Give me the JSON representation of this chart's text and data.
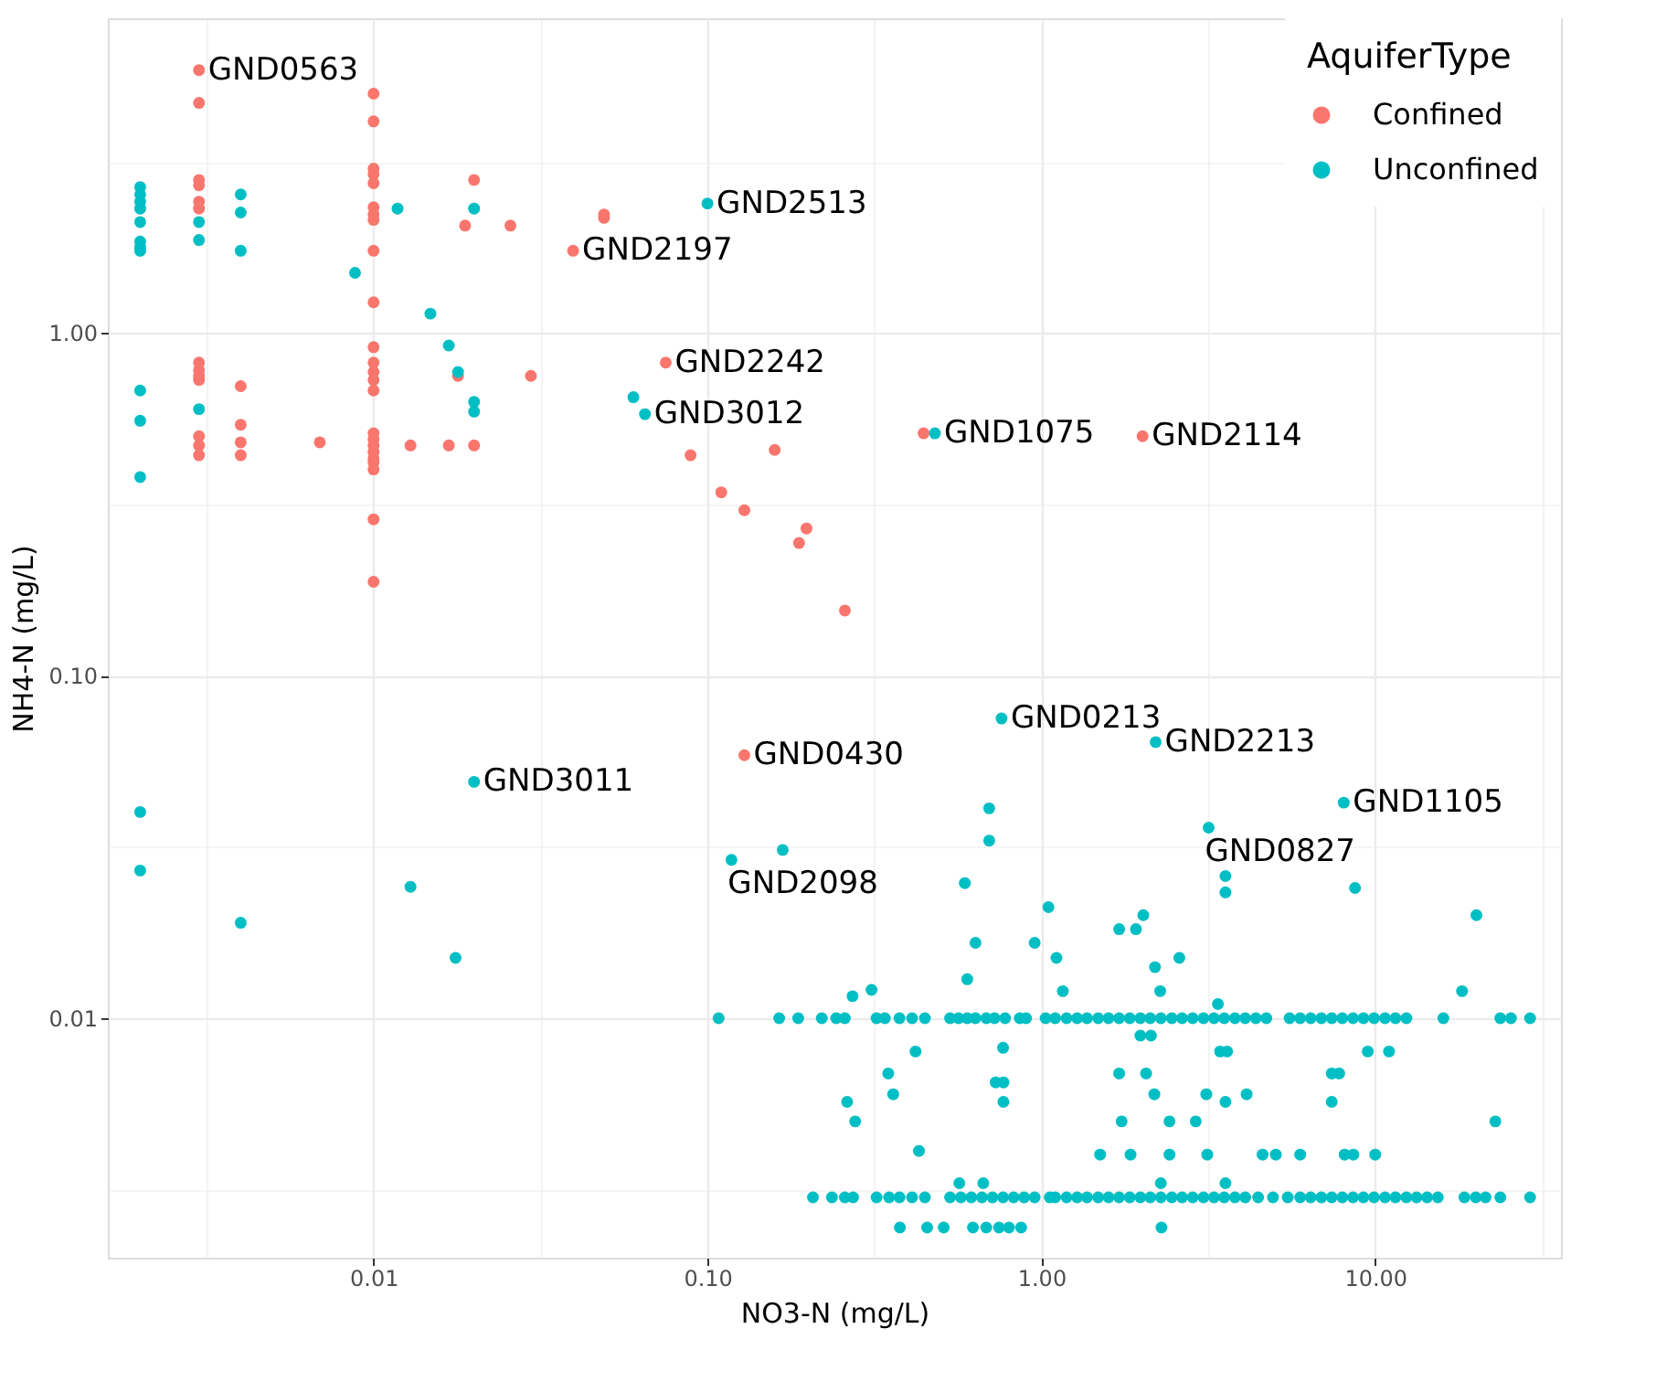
{
  "chart_data": {
    "type": "scatter",
    "xlabel": "NO3-N (mg/L)",
    "ylabel": "NH4-N (mg/L)",
    "legend_title": "AquiferType",
    "legend": "top right",
    "grid": true,
    "marker": "circle",
    "log": "xy",
    "xlim": [
      0.0016,
      36
    ],
    "ylim": [
      0.002,
      8.3
    ],
    "xticks": [
      {
        "value": 0.00316,
        "label": null
      },
      0.01,
      {
        "value": 0.0316,
        "label": null
      },
      {
        "value": 0.1,
        "label": "0.10"
      },
      {
        "value": 0.316,
        "label": null
      },
      {
        "value": 1,
        "label": "1.00"
      },
      {
        "value": 3.16,
        "label": null
      },
      {
        "value": 10,
        "label": "10.00"
      },
      {
        "value": 31.6,
        "label": null
      }
    ],
    "yticks": [
      {
        "value": 0.00316,
        "label": null
      },
      0.01,
      {
        "value": 0.0316,
        "label": null
      },
      {
        "value": 0.1,
        "label": "0.10"
      },
      {
        "value": 0.316,
        "label": null
      },
      {
        "value": 1,
        "label": "1.00"
      },
      {
        "value": 3.16,
        "label": null
      }
    ],
    "series": [
      {
        "name": "Confined",
        "color": "#f8766d",
        "x": [
          0.003,
          0.003,
          0.003,
          0.003,
          0.003,
          0.003,
          0.003,
          0.003,
          0.003,
          0.003,
          0.003,
          0.003,
          0.003,
          0.004,
          0.004,
          0.004,
          0.004,
          0.0069,
          0.01,
          0.01,
          0.01,
          0.01,
          0.01,
          0.01,
          0.01,
          0.01,
          0.01,
          0.01,
          0.01,
          0.01,
          0.01,
          0.01,
          0.01,
          0.01,
          0.01,
          0.01,
          0.01,
          0.01,
          0.01,
          0.01,
          0.01,
          0.01,
          0.0129,
          0.0168,
          0.0179,
          0.02,
          0.0188,
          0.02,
          0.0257,
          0.0296,
          0.0396,
          0.049,
          0.049,
          0.075,
          0.089,
          0.159,
          0.11,
          0.129,
          0.198,
          0.188,
          0.258,
          0.444,
          2.01,
          0.129
        ],
        "values": [
          5.86,
          4.7,
          2.8,
          2.7,
          2.42,
          2.31,
          0.82,
          0.78,
          0.75,
          0.73,
          0.5,
          0.47,
          0.44,
          0.7,
          0.54,
          0.48,
          0.44,
          0.48,
          5.0,
          4.15,
          3.02,
          2.91,
          2.74,
          2.33,
          2.22,
          2.14,
          1.74,
          1.23,
          0.91,
          0.82,
          0.77,
          0.73,
          0.68,
          0.51,
          0.49,
          0.47,
          0.45,
          0.43,
          0.42,
          0.4,
          0.286,
          0.188,
          0.47,
          0.47,
          0.75,
          2.8,
          2.06,
          0.47,
          2.06,
          0.75,
          1.74,
          2.22,
          2.17,
          0.82,
          0.44,
          0.456,
          0.343,
          0.304,
          0.269,
          0.244,
          0.155,
          0.51,
          0.5,
          0.0586
        ]
      },
      {
        "name": "Unconfined",
        "color": "#00bfc4",
        "x": [
          0.002,
          0.002,
          0.002,
          0.002,
          0.002,
          0.002,
          0.002,
          0.002,
          0.002,
          0.002,
          0.002,
          0.002,
          0.002,
          0.003,
          0.003,
          0.003,
          0.004,
          0.004,
          0.004,
          0.004,
          0.0088,
          0.0118,
          0.0148,
          0.0168,
          0.0179,
          0.02,
          0.02,
          0.02,
          0.06,
          0.065,
          0.1,
          0.48,
          0.02,
          0.0129,
          0.0176,
          0.118,
          0.168,
          0.76,
          2.2,
          8.05,
          3.17,
          0.59,
          0.635,
          0.6,
          0.698,
          0.698,
          1.05,
          0.955,
          1.11,
          1.16,
          1.71,
          1.92,
          2.02,
          2.19,
          2.27,
          2.59,
          3.38,
          3.56,
          3.56,
          8.7,
          20.1,
          18.2,
          0.262,
          0.277,
          0.348,
          0.36,
          0.42,
          0.43,
          0.272,
          0.31,
          0.768,
          0.73,
          0.77,
          0.77,
          0.568,
          0.67,
          1.71,
          1.74,
          2.06,
          1.98,
          2.13,
          2.18,
          2.42,
          3.12,
          2.9,
          3.43,
          3.6,
          3.56,
          4.12,
          1.5,
          1.85,
          2.28,
          2.42,
          3.14,
          3.56,
          4.6,
          5.04,
          5.96,
          7.41,
          7.41,
          7.8,
          9.5,
          11.0,
          8.1,
          8.6,
          10.0,
          22.9,
          0.108,
          0.164,
          0.187,
          0.22,
          0.243,
          0.258,
          0.321,
          0.34,
          0.376,
          0.41,
          0.448,
          0.533,
          0.565,
          0.6,
          0.635,
          0.684,
          0.724,
          0.779,
          0.862,
          0.9,
          1.03,
          1.1,
          1.19,
          1.28,
          1.37,
          1.48,
          1.59,
          1.71,
          1.84,
          1.98,
          2.12,
          2.28,
          2.46,
          2.64,
          2.84,
          3.06,
          3.29,
          3.53,
          3.8,
          4.08,
          4.39,
          4.72,
          5.54,
          5.96,
          6.41,
          6.9,
          7.41,
          7.97,
          8.58,
          9.22,
          9.92,
          10.7,
          11.5,
          12.4,
          16.0,
          23.7,
          25.5,
          29.1,
          0.207,
          0.236,
          0.258,
          0.273,
          0.321,
          0.35,
          0.376,
          0.41,
          0.448,
          0.533,
          0.574,
          0.617,
          0.664,
          0.714,
          0.768,
          0.826,
          0.888,
          0.955,
          1.06,
          1.1,
          1.19,
          1.28,
          1.37,
          1.48,
          1.59,
          1.71,
          1.84,
          1.98,
          2.12,
          2.28,
          2.46,
          2.64,
          2.84,
          3.06,
          3.29,
          3.53,
          3.8,
          4.08,
          4.46,
          4.94,
          5.47,
          5.96,
          6.41,
          6.9,
          7.41,
          7.97,
          8.58,
          9.22,
          9.92,
          10.7,
          11.5,
          12.4,
          13.3,
          14.3,
          15.4,
          18.5,
          20.0,
          21.4,
          23.7,
          29.1,
          0.377,
          0.455,
          0.51,
          0.624,
          0.684,
          0.747,
          0.8,
          0.87,
          2.29
        ],
        "values": [
          2.67,
          2.54,
          2.42,
          2.31,
          2.11,
          1.85,
          1.78,
          1.74,
          0.68,
          0.555,
          0.38,
          0.04,
          0.027,
          2.11,
          1.87,
          0.6,
          2.54,
          2.25,
          1.74,
          0.019,
          1.5,
          2.31,
          1.14,
          0.92,
          0.77,
          2.31,
          0.63,
          0.59,
          0.65,
          0.58,
          2.39,
          0.51,
          0.049,
          0.0242,
          0.015,
          0.029,
          0.031,
          0.075,
          0.064,
          0.0426,
          0.036,
          0.0248,
          0.0166,
          0.013,
          0.041,
          0.033,
          0.0211,
          0.0166,
          0.015,
          0.012,
          0.0182,
          0.0182,
          0.02,
          0.0141,
          0.012,
          0.015,
          0.011,
          0.026,
          0.0233,
          0.024,
          0.02,
          0.012,
          0.0057,
          0.005,
          0.0069,
          0.006,
          0.008,
          0.0041,
          0.0116,
          0.0121,
          0.0082,
          0.0065,
          0.0065,
          0.0057,
          0.0033,
          0.0033,
          0.0069,
          0.005,
          0.0069,
          0.0089,
          0.0089,
          0.006,
          0.005,
          0.006,
          0.005,
          0.008,
          0.008,
          0.0057,
          0.006,
          0.004,
          0.004,
          0.0033,
          0.004,
          0.004,
          0.0033,
          0.004,
          0.004,
          0.004,
          0.0069,
          0.0057,
          0.0069,
          0.008,
          0.008,
          0.004,
          0.004,
          0.004,
          0.005,
          0.01,
          0.01,
          0.01,
          0.01,
          0.01,
          0.01,
          0.01,
          0.01,
          0.01,
          0.01,
          0.01,
          0.01,
          0.01,
          0.01,
          0.01,
          0.01,
          0.01,
          0.01,
          0.01,
          0.01,
          0.01,
          0.01,
          0.01,
          0.01,
          0.01,
          0.01,
          0.01,
          0.01,
          0.01,
          0.01,
          0.01,
          0.01,
          0.01,
          0.01,
          0.01,
          0.01,
          0.01,
          0.01,
          0.01,
          0.01,
          0.01,
          0.01,
          0.01,
          0.01,
          0.01,
          0.01,
          0.01,
          0.01,
          0.01,
          0.01,
          0.01,
          0.01,
          0.01,
          0.01,
          0.01,
          0.01,
          0.01,
          0.01,
          0.003,
          0.003,
          0.003,
          0.003,
          0.003,
          0.003,
          0.003,
          0.003,
          0.003,
          0.003,
          0.003,
          0.003,
          0.003,
          0.003,
          0.003,
          0.003,
          0.003,
          0.003,
          0.003,
          0.003,
          0.003,
          0.003,
          0.003,
          0.003,
          0.003,
          0.003,
          0.003,
          0.003,
          0.003,
          0.003,
          0.003,
          0.003,
          0.003,
          0.003,
          0.003,
          0.003,
          0.003,
          0.003,
          0.003,
          0.003,
          0.003,
          0.003,
          0.003,
          0.003,
          0.003,
          0.003,
          0.003,
          0.003,
          0.003,
          0.003,
          0.003,
          0.003,
          0.003,
          0.003,
          0.003,
          0.003,
          0.003,
          0.003,
          0.003,
          0.003,
          0.00245,
          0.00245,
          0.00245,
          0.00245,
          0.00245,
          0.00245,
          0.00245,
          0.00245,
          0.00245
        ]
      }
    ],
    "annotations": [
      {
        "text": "GND0563",
        "x": 0.003,
        "y": 5.86
      },
      {
        "text": "GND2513",
        "x": 0.1,
        "y": 2.39
      },
      {
        "text": "GND2197",
        "x": 0.0396,
        "y": 1.74
      },
      {
        "text": "GND2242",
        "x": 0.075,
        "y": 0.82
      },
      {
        "text": "GND3012",
        "x": 0.065,
        "y": 0.58
      },
      {
        "text": "GND1075",
        "x": 0.48,
        "y": 0.51
      },
      {
        "text": "GND2114",
        "x": 2.01,
        "y": 0.5
      },
      {
        "text": "GND0213",
        "x": 0.76,
        "y": 0.075
      },
      {
        "text": "GND2213",
        "x": 2.2,
        "y": 0.064
      },
      {
        "text": "GND3011",
        "x": 0.02,
        "y": 0.049
      },
      {
        "text": "GND0430",
        "x": 0.129,
        "y": 0.0586
      },
      {
        "text": "GND1105",
        "x": 8.05,
        "y": 0.0426
      },
      {
        "text": "GND0827",
        "x": 3.17,
        "y": 0.036
      },
      {
        "text": "GND2098",
        "x": 0.118,
        "y": 0.029
      }
    ]
  }
}
